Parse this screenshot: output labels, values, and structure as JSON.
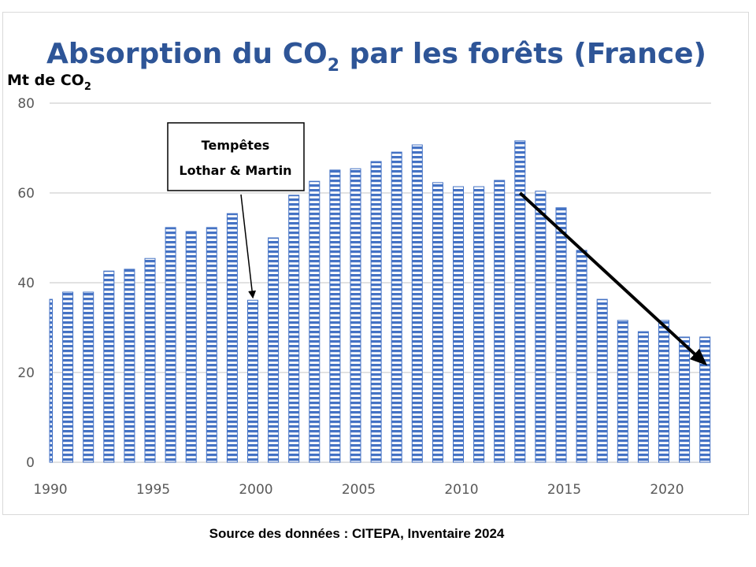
{
  "chart_data": {
    "type": "bar",
    "title_main": "Absorption du CO",
    "title_sub": "2",
    "title_rest": " par les forêts (France)",
    "title": "Absorption du CO2 par les forêts (France)",
    "ylabel_main": "Mt de CO",
    "ylabel_sub": "2",
    "ylabel": "Mt de CO2",
    "xlabel": "",
    "ylim": [
      0,
      80
    ],
    "yticks": [
      0,
      20,
      40,
      60,
      80
    ],
    "xtick_labels": [
      "1990",
      "1995",
      "2000",
      "2005",
      "2010",
      "2015",
      "2020"
    ],
    "xtick_years": [
      1990,
      1995,
      2000,
      2005,
      2010,
      2015,
      2020
    ],
    "grid": true,
    "bar_color": "#4472c4",
    "categories": [
      1990,
      1991,
      1992,
      1993,
      1994,
      1995,
      1996,
      1997,
      1998,
      1999,
      2000,
      2001,
      2002,
      2003,
      2004,
      2005,
      2006,
      2007,
      2008,
      2009,
      2010,
      2011,
      2012,
      2013,
      2014,
      2015,
      2016,
      2017,
      2018,
      2019,
      2020,
      2021,
      2022
    ],
    "values": [
      36.3,
      37.9,
      37.9,
      42.6,
      43.0,
      45.4,
      52.3,
      51.4,
      52.3,
      55.4,
      36.1,
      50.0,
      59.5,
      62.6,
      65.1,
      65.4,
      67.0,
      69.1,
      70.7,
      62.3,
      61.4,
      61.4,
      62.8,
      71.6,
      60.4,
      56.7,
      47.2,
      36.3,
      31.6,
      29.1,
      31.6,
      27.9,
      27.9
    ],
    "annotation": {
      "line1": "Tempêtes",
      "line2": "Lothar & Martin",
      "target_year": 2000
    },
    "trend_arrow": {
      "from": {
        "year": 2013,
        "value": 60
      },
      "to": {
        "year": 2022,
        "value": 22
      }
    }
  },
  "source": "Source des données : CITEPA, Inventaire 2024"
}
